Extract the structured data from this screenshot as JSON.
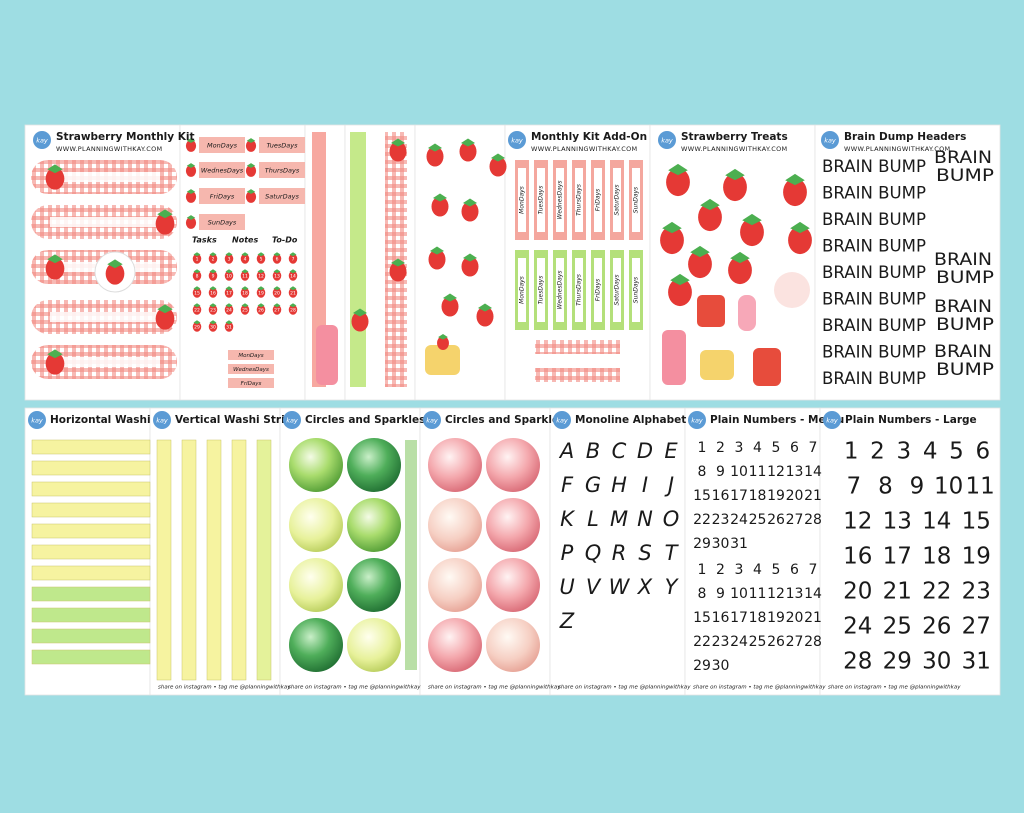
{
  "top_sheets": [
    {
      "title": "Strawberry Monthly Kit",
      "url": "WWW.PLANNINGWITHKAY.COM"
    },
    {
      "title": "Monthly Kit Add-On",
      "url": "WWW.PLANNINGWITHKAY.COM"
    },
    {
      "title": "Strawberry Treats",
      "url": "WWW.PLANNINGWITHKAY.COM"
    },
    {
      "title": "Brain Dump Headers",
      "url": "WWW.PLANNINGWITHKAY.COM"
    }
  ],
  "logo": "kay",
  "day_labels": [
    "MonDays",
    "TuesDays",
    "WednesDays",
    "ThursDays",
    "FriDays",
    "SaturDays",
    "SunDays"
  ],
  "list_headers": [
    "Tasks",
    "Notes",
    "To-Do"
  ],
  "brain_dump_line": "BRAIN BUMP",
  "brain_dump_words": [
    "BRAIN",
    "BUMP"
  ],
  "bottom_sheets": [
    {
      "title": "Horizontal Washi St"
    },
    {
      "title": "Vertical Washi Strips"
    },
    {
      "title": "Circles and Sparkles"
    },
    {
      "title": "Circles and Sparkles"
    },
    {
      "title": "Monoline Alphabet"
    },
    {
      "title": "Plain Numbers - Mediu"
    },
    {
      "title": "Plain Numbers - Large"
    }
  ],
  "footer": "share on instagram • tag me @planningwithkay",
  "alphabet": [
    "A",
    "B",
    "C",
    "D",
    "E",
    "F",
    "G",
    "H",
    "I",
    "J",
    "K",
    "L",
    "M",
    "N",
    "O",
    "P",
    "Q",
    "R",
    "S",
    "T",
    "U",
    "V",
    "W",
    "X",
    "Y",
    "Z"
  ],
  "numbers": [
    1,
    2,
    3,
    4,
    5,
    6,
    7,
    8,
    9,
    10,
    11,
    12,
    13,
    14,
    15,
    16,
    17,
    18,
    19,
    20,
    21,
    22,
    23,
    24,
    25,
    26,
    27,
    28,
    29,
    30,
    31
  ]
}
